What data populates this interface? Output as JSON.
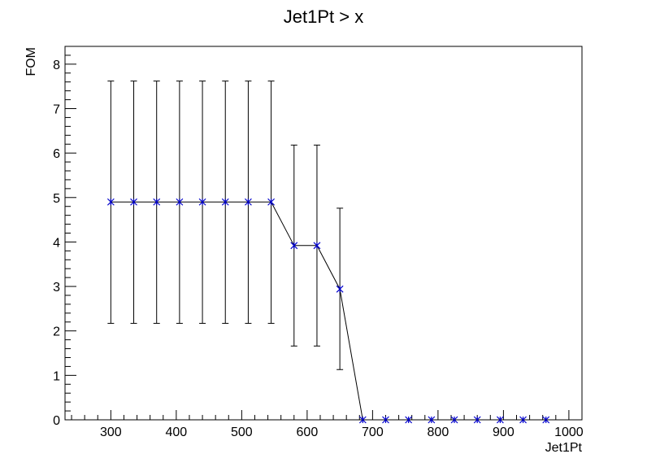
{
  "chart_data": {
    "type": "scatter",
    "title": "Jet1Pt > x",
    "xlabel": "Jet1Pt",
    "ylabel": "FOM",
    "xlim": [
      230,
      1020
    ],
    "ylim": [
      0,
      8.4
    ],
    "xticks": [
      300,
      400,
      500,
      600,
      700,
      800,
      900,
      1000
    ],
    "yticks": [
      0,
      1,
      2,
      3,
      4,
      5,
      6,
      7,
      8
    ],
    "grid": false,
    "legend": "none",
    "marker_color": "#0000cc",
    "line_color": "#000000",
    "series": [
      {
        "x": [
          300,
          335,
          370,
          405,
          440,
          475,
          510,
          545,
          580,
          615,
          650,
          685,
          720,
          755,
          790,
          825,
          860,
          895,
          930,
          965
        ],
        "y": [
          4.9,
          4.9,
          4.9,
          4.9,
          4.9,
          4.9,
          4.9,
          4.9,
          3.92,
          3.92,
          2.94,
          0,
          0,
          0,
          0,
          0,
          0,
          0,
          0,
          0
        ],
        "err_low": [
          2.17,
          2.17,
          2.17,
          2.17,
          2.17,
          2.17,
          2.17,
          2.17,
          1.66,
          1.66,
          1.13,
          0,
          0,
          0,
          0,
          0,
          0,
          0,
          0,
          0
        ],
        "err_high": [
          7.62,
          7.62,
          7.62,
          7.62,
          7.62,
          7.62,
          7.62,
          7.62,
          6.18,
          6.18,
          4.76,
          0,
          0,
          0,
          0,
          0,
          0,
          0,
          0,
          0
        ]
      }
    ]
  }
}
